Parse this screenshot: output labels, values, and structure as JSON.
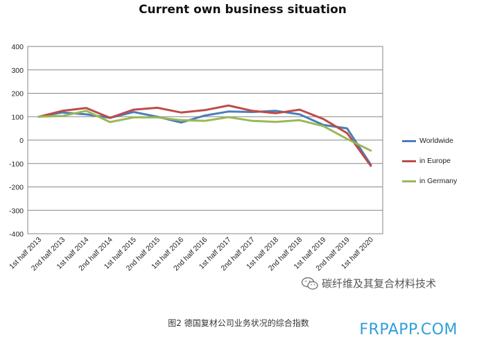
{
  "chart_data": {
    "type": "line",
    "title": "Current own business situation",
    "xlabel": "",
    "ylabel": "",
    "ylim": [
      -400,
      400
    ],
    "yticks": [
      400,
      300,
      200,
      100,
      0,
      -100,
      -200,
      -300,
      -400
    ],
    "grid": true,
    "legend_position": "right",
    "categories": [
      "1st half 2013",
      "2nd half 2013",
      "1st half 2014",
      "2nd half 2014",
      "1st half 2015",
      "2nd half 2015",
      "1st half 2016",
      "2nd half 2016",
      "1st half 2017",
      "2nd half 2017",
      "1st half 2018",
      "2nd half 2018",
      "1st half 2019",
      "2nd half 2019",
      "1st half 2020"
    ],
    "series": [
      {
        "name": "Worldwide",
        "color": "#4a7ebb",
        "values": [
          100,
          118,
          110,
          95,
          120,
          100,
          75,
          105,
          122,
          120,
          125,
          110,
          65,
          50,
          -105
        ]
      },
      {
        "name": "in Europe",
        "color": "#be4b48",
        "values": [
          100,
          125,
          137,
          95,
          130,
          138,
          118,
          128,
          148,
          125,
          115,
          130,
          90,
          30,
          -110
        ]
      },
      {
        "name": "in Germany",
        "color": "#98b954",
        "values": [
          100,
          103,
          125,
          77,
          97,
          97,
          85,
          82,
          98,
          82,
          78,
          85,
          60,
          5,
          -45
        ]
      }
    ]
  },
  "watermark_text": "碳纤维及其复合材料技术",
  "watermark_icon": "wechat-icon",
  "caption": "图2 德国复材公司业务状况的综合指数",
  "site_logo": "FRPAPP.COM"
}
